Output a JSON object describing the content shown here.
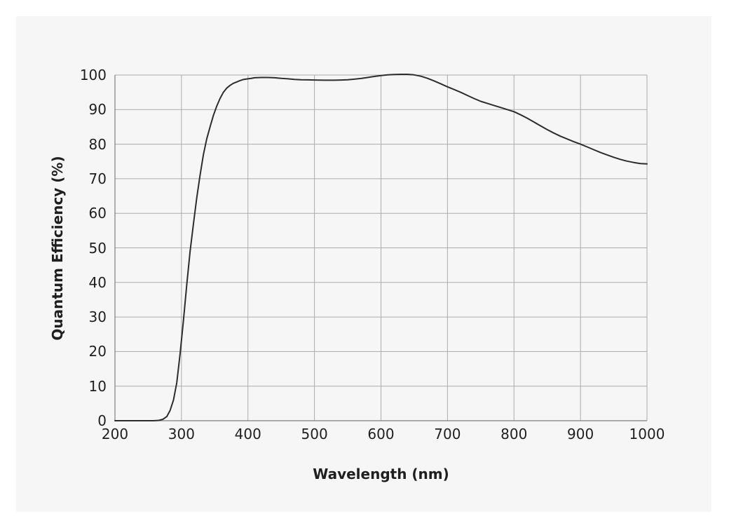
{
  "chart_data": {
    "type": "line",
    "title": "",
    "xlabel": "Wavelength (nm)",
    "ylabel": "Quantum Efficiency (%)",
    "xlim": [
      200,
      1000
    ],
    "ylim": [
      0,
      100
    ],
    "x_ticks": [
      200,
      300,
      400,
      500,
      600,
      700,
      800,
      900,
      1000
    ],
    "y_ticks": [
      0,
      10,
      20,
      30,
      40,
      50,
      60,
      70,
      80,
      90,
      100
    ],
    "grid": true,
    "legend": false,
    "series": [
      {
        "name": "quantum-efficiency",
        "color": "#2d2d2d",
        "points": [
          [
            200,
            0
          ],
          [
            215,
            0
          ],
          [
            230,
            0
          ],
          [
            245,
            0
          ],
          [
            258,
            0
          ],
          [
            266,
            0.1
          ],
          [
            272,
            0.4
          ],
          [
            278,
            1.2
          ],
          [
            283,
            3
          ],
          [
            288,
            6
          ],
          [
            293,
            11
          ],
          [
            298,
            19.5
          ],
          [
            303,
            29
          ],
          [
            308,
            39.5
          ],
          [
            313,
            49
          ],
          [
            318,
            57
          ],
          [
            323,
            64.5
          ],
          [
            328,
            71
          ],
          [
            333,
            77
          ],
          [
            338,
            81.5
          ],
          [
            343,
            85
          ],
          [
            348,
            88.3
          ],
          [
            353,
            91
          ],
          [
            358,
            93.2
          ],
          [
            363,
            95
          ],
          [
            368,
            96.2
          ],
          [
            373,
            97
          ],
          [
            378,
            97.6
          ],
          [
            383,
            98
          ],
          [
            388,
            98.4
          ],
          [
            393,
            98.7
          ],
          [
            400,
            98.9
          ],
          [
            405,
            99.05
          ],
          [
            410,
            99.2
          ],
          [
            420,
            99.3
          ],
          [
            430,
            99.3
          ],
          [
            440,
            99.2
          ],
          [
            450,
            99.05
          ],
          [
            460,
            98.9
          ],
          [
            470,
            98.75
          ],
          [
            480,
            98.65
          ],
          [
            490,
            98.6
          ],
          [
            500,
            98.55
          ],
          [
            515,
            98.5
          ],
          [
            530,
            98.5
          ],
          [
            540,
            98.55
          ],
          [
            550,
            98.65
          ],
          [
            560,
            98.8
          ],
          [
            570,
            99
          ],
          [
            580,
            99.3
          ],
          [
            590,
            99.6
          ],
          [
            600,
            99.85
          ],
          [
            610,
            100.05
          ],
          [
            620,
            100.15
          ],
          [
            630,
            100.2
          ],
          [
            640,
            100.2
          ],
          [
            650,
            100.05
          ],
          [
            660,
            99.65
          ],
          [
            670,
            99.05
          ],
          [
            680,
            98.3
          ],
          [
            690,
            97.45
          ],
          [
            700,
            96.6
          ],
          [
            710,
            95.8
          ],
          [
            720,
            95
          ],
          [
            730,
            94.1
          ],
          [
            740,
            93.2
          ],
          [
            750,
            92.4
          ],
          [
            760,
            91.8
          ],
          [
            770,
            91.2
          ],
          [
            780,
            90.6
          ],
          [
            790,
            90
          ],
          [
            800,
            89.4
          ],
          [
            810,
            88.5
          ],
          [
            820,
            87.5
          ],
          [
            830,
            86.4
          ],
          [
            840,
            85.3
          ],
          [
            850,
            84.2
          ],
          [
            860,
            83.2
          ],
          [
            870,
            82.3
          ],
          [
            880,
            81.5
          ],
          [
            890,
            80.7
          ],
          [
            900,
            80
          ],
          [
            910,
            79.2
          ],
          [
            920,
            78.4
          ],
          [
            930,
            77.6
          ],
          [
            940,
            76.9
          ],
          [
            950,
            76.2
          ],
          [
            960,
            75.6
          ],
          [
            970,
            75.1
          ],
          [
            980,
            74.7
          ],
          [
            990,
            74.4
          ],
          [
            1000,
            74.3
          ]
        ]
      }
    ]
  },
  "colors": {
    "page_background": "#ffffff",
    "panel_background": "#f6f6f6",
    "gridline": "#ababab",
    "axis": "#7f7f7f",
    "line": "#2d2d2d",
    "text": "#1f1f1f"
  }
}
